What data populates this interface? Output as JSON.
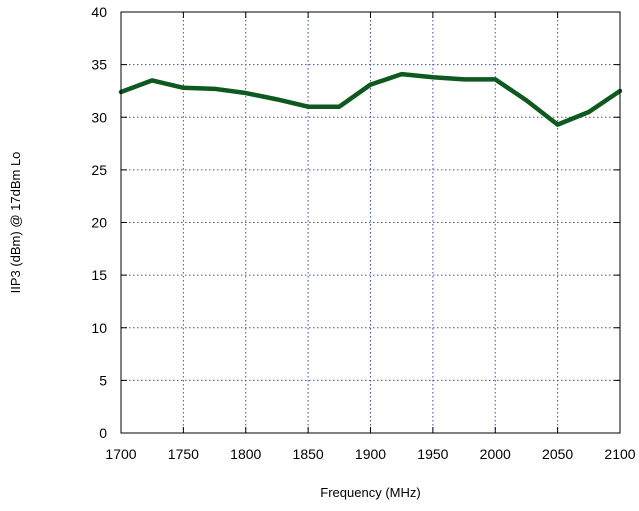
{
  "chart_data": {
    "type": "line",
    "title": "",
    "xlabel": "Frequency (MHz)",
    "ylabel": "IIP3 (dBm) @ 17dBm Lo",
    "xlim": [
      1700,
      2100
    ],
    "ylim": [
      0,
      40
    ],
    "xticks": [
      1700,
      1750,
      1800,
      1850,
      1900,
      1950,
      2000,
      2050,
      2100
    ],
    "yticks": [
      0,
      5,
      10,
      15,
      20,
      25,
      30,
      35,
      40
    ],
    "grid": true,
    "legend": "none",
    "series": [
      {
        "color": "#0d5a1e",
        "x": [
          1700,
          1725,
          1750,
          1775,
          1800,
          1825,
          1850,
          1875,
          1900,
          1925,
          1950,
          1975,
          2000,
          2025,
          2050,
          2075,
          2100
        ],
        "values": [
          32.4,
          33.5,
          32.8,
          32.7,
          32.3,
          31.7,
          31.0,
          31.0,
          33.1,
          34.1,
          33.8,
          33.6,
          33.6,
          31.6,
          29.3,
          30.5,
          32.5
        ]
      }
    ]
  }
}
